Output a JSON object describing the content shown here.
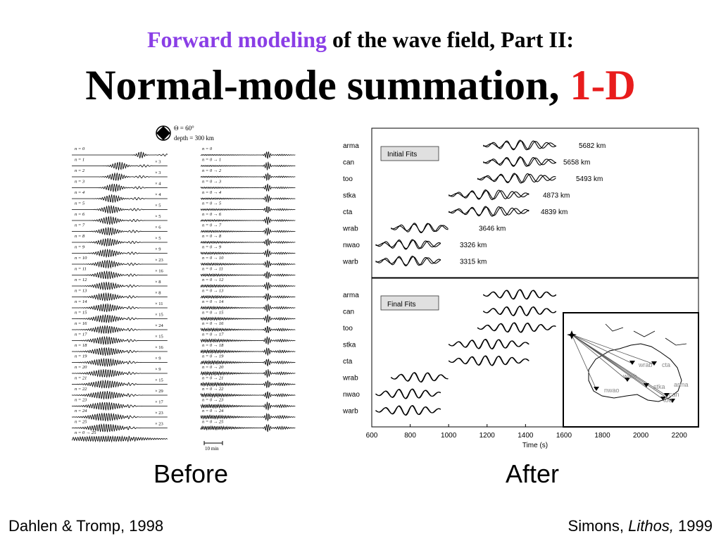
{
  "title": {
    "line1_accent": "Forward modeling",
    "line1_rest": " of the wave field, Part II:",
    "line2_main": "Normal-mode summation, ",
    "line2_accent": "1-D",
    "accent_purple": "#8a3ee6",
    "accent_red": "#e81c1c"
  },
  "left_figure": {
    "header_theta": "Θ = 60°",
    "header_depth": "depth = 300 km",
    "rows_left": [
      "n = 0",
      "n = 1",
      "n = 2",
      "n = 3",
      "n = 4",
      "n = 5",
      "n = 6",
      "n = 7",
      "n = 8",
      "n = 9",
      "n = 10",
      "n = 11",
      "n = 12",
      "n = 13",
      "n = 14",
      "n = 15",
      "n = 16",
      "n = 17",
      "n = 18",
      "n = 19",
      "n = 20",
      "n = 21",
      "n = 22",
      "n = 23",
      "n = 24",
      "n = 25",
      "n = 0 → 25"
    ],
    "multipliers": [
      "",
      "× 3",
      "× 3",
      "× 4",
      "× 4",
      "× 5",
      "× 5",
      "× 6",
      "× 5",
      "× 9",
      "× 23",
      "× 16",
      "× 8",
      "× 8",
      "× 11",
      "× 15",
      "× 24",
      "× 15",
      "× 16",
      "× 9",
      "× 9",
      "× 15",
      "× 29",
      "× 17",
      "× 23",
      "× 23",
      ""
    ],
    "rows_right": [
      "n = 0",
      "n = 0 → 1",
      "n = 0 → 2",
      "n = 0 → 3",
      "n = 0 → 4",
      "n = 0 → 5",
      "n = 0 → 6",
      "n = 0 → 7",
      "n = 0 → 8",
      "n = 0 → 9",
      "n = 0 → 10",
      "n = 0 → 11",
      "n = 0 → 12",
      "n = 0 → 13",
      "n = 0 → 14",
      "n = 0 → 15",
      "n = 0 → 16",
      "n = 0 → 17",
      "n = 0 → 18",
      "n = 0 → 19",
      "n = 0 → 20",
      "n = 0 → 21",
      "n = 0 → 22",
      "n = 0 → 23",
      "n = 0 → 24",
      "n = 0 → 25"
    ],
    "scale_bar": "10 min"
  },
  "right_figure": {
    "top_box": "Initial Fits",
    "bottom_box": "Final Fits",
    "stations": [
      "arma",
      "can",
      "too",
      "stka",
      "cta",
      "wrab",
      "nwao",
      "warb"
    ],
    "distances": [
      "5682 km",
      "5658 km",
      "5493 km",
      "4873 km",
      "4839 km",
      "3646 km",
      "3326 km",
      "3315 km"
    ],
    "x_ticks": [
      "600",
      "800",
      "1000",
      "1200",
      "1400",
      "1600",
      "1800",
      "2000",
      "2200"
    ],
    "xlabel": "Time (s)",
    "map_labels": [
      "wrab",
      "cta",
      "warb",
      "nwao",
      "stka",
      "arma",
      "can",
      "too"
    ]
  },
  "labels": {
    "before": "Before",
    "after": "After"
  },
  "citations": {
    "left": "Dahlen & Tromp, 1998",
    "right_author": "Simons, ",
    "right_journal": "Lithos,",
    "right_year": " 1999"
  }
}
